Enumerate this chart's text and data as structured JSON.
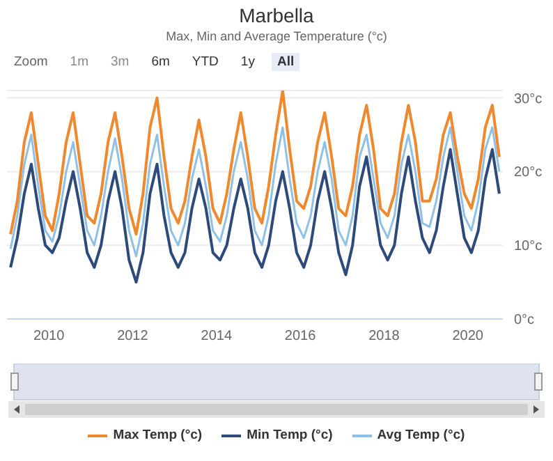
{
  "chart_data": {
    "type": "line",
    "title": "Marbella",
    "subtitle": "Max, Min and Average Temperature (°c)",
    "annotations": [
      "Zoom",
      "1m",
      "3m",
      "6m",
      "YTD",
      "1y",
      "All"
    ],
    "x": [
      "2009-02",
      "2009-04",
      "2009-06",
      "2009-08",
      "2009-10",
      "2009-12",
      "2010-02",
      "2010-04",
      "2010-06",
      "2010-08",
      "2010-10",
      "2010-12",
      "2011-02",
      "2011-04",
      "2011-06",
      "2011-08",
      "2011-10",
      "2011-12",
      "2012-02",
      "2012-04",
      "2012-06",
      "2012-08",
      "2012-10",
      "2012-12",
      "2013-02",
      "2013-04",
      "2013-06",
      "2013-08",
      "2013-10",
      "2013-12",
      "2014-02",
      "2014-04",
      "2014-06",
      "2014-08",
      "2014-10",
      "2014-12",
      "2015-02",
      "2015-04",
      "2015-06",
      "2015-08",
      "2015-10",
      "2015-12",
      "2016-02",
      "2016-04",
      "2016-06",
      "2016-08",
      "2016-10",
      "2016-12",
      "2017-02",
      "2017-04",
      "2017-06",
      "2017-08",
      "2017-10",
      "2017-12",
      "2018-02",
      "2018-04",
      "2018-06",
      "2018-08",
      "2018-10",
      "2018-12",
      "2019-02",
      "2019-04",
      "2019-06",
      "2019-08",
      "2019-10",
      "2019-12",
      "2020-02",
      "2020-04",
      "2020-06",
      "2020-08",
      "2020-10"
    ],
    "series": [
      {
        "name": "Max Temp (°c)",
        "color": "#f0892e",
        "values": [
          11.5,
          16,
          24,
          28,
          21,
          14,
          12,
          17,
          24,
          28,
          21,
          14,
          13,
          17,
          24,
          28,
          22,
          15,
          11.5,
          17,
          26,
          30,
          22,
          15,
          13,
          16,
          22,
          27,
          22,
          15,
          13,
          17,
          23,
          28,
          22,
          15,
          13,
          18,
          25,
          31,
          23,
          16,
          15,
          18,
          24,
          28,
          22,
          15,
          14,
          18,
          25,
          29,
          23,
          15,
          14,
          17,
          24,
          29,
          24,
          16,
          16,
          19,
          25,
          28,
          22,
          17,
          15,
          19,
          26,
          29,
          22
        ]
      },
      {
        "name": "Min Temp (°c)",
        "color": "#2e4a7a",
        "values": [
          7,
          11,
          17,
          21,
          15,
          10,
          9,
          11,
          16,
          20,
          15,
          9,
          7,
          10,
          16,
          20,
          15,
          8,
          5,
          9,
          17,
          21,
          14,
          9,
          7,
          9,
          15,
          19,
          15,
          9,
          8,
          10,
          15,
          19,
          15,
          9,
          7,
          10,
          16,
          20,
          15,
          9,
          7,
          10,
          16,
          20,
          15,
          9,
          6,
          10,
          18,
          22,
          16,
          10,
          8,
          10,
          17,
          22,
          16,
          11,
          9,
          12,
          18,
          23,
          17,
          11,
          9,
          12,
          19,
          23,
          17
        ]
      },
      {
        "name": "Avg Temp (°c)",
        "color": "#8ec0e8",
        "values": [
          9.5,
          14,
          21,
          25,
          18,
          12,
          10.5,
          14,
          20,
          24,
          18,
          12,
          10,
          14,
          20,
          24.5,
          19,
          12,
          8.5,
          13,
          21,
          25,
          18,
          12,
          10,
          13,
          19,
          23,
          18,
          12,
          10.5,
          14,
          20,
          24,
          19,
          12,
          10,
          14,
          21,
          26,
          19,
          13,
          11,
          14,
          20,
          24,
          19,
          12,
          10,
          14,
          22,
          25,
          19,
          13,
          11,
          14,
          21,
          25,
          20,
          13,
          12.5,
          16,
          22,
          26,
          20,
          14,
          12,
          16,
          23,
          26,
          20
        ]
      }
    ],
    "xlim": [
      "2009-01",
      "2020-11"
    ],
    "xticks": [
      "2010",
      "2012",
      "2014",
      "2016",
      "2018",
      "2020"
    ],
    "ylim": [
      0,
      31
    ],
    "yticks": [
      {
        "value": 0,
        "label": "0°c"
      },
      {
        "value": 10,
        "label": "10°c"
      },
      {
        "value": 20,
        "label": "20°c"
      },
      {
        "value": 30,
        "label": "30°c"
      }
    ],
    "grid": "y",
    "legend": "bottom",
    "marker": "none",
    "line_style": "solid"
  }
}
